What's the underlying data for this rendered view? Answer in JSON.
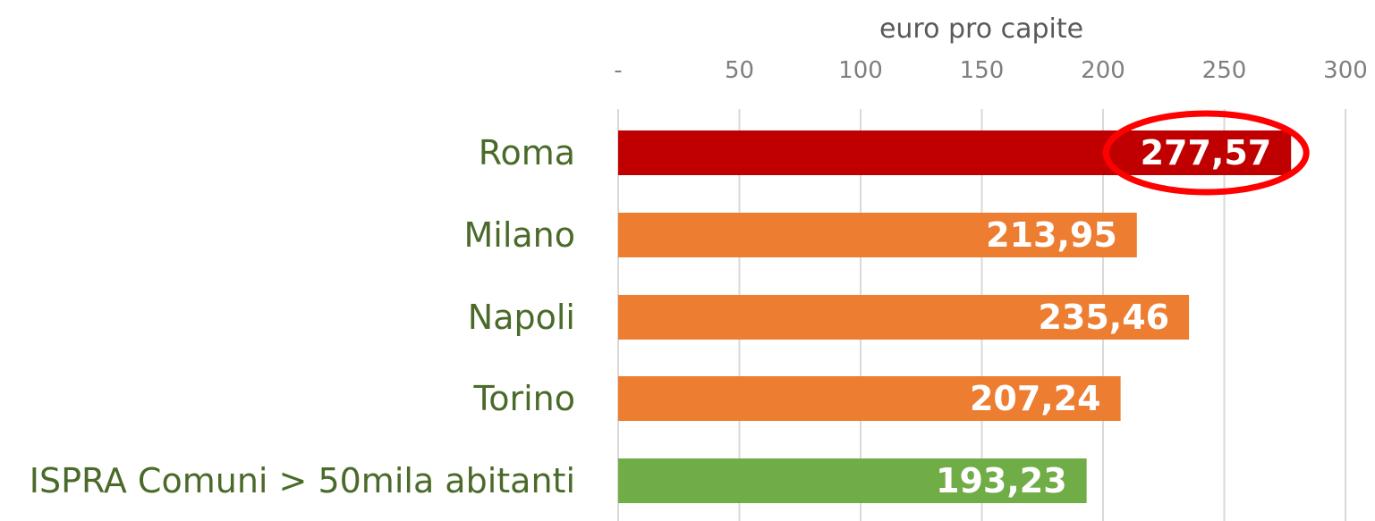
{
  "chart_data": {
    "type": "bar",
    "orientation": "horizontal",
    "xlabel": "euro pro capite",
    "xlim": [
      0,
      300
    ],
    "tick_labels": [
      "-",
      "50",
      "100",
      "150",
      "200",
      "250",
      "300"
    ],
    "grid": true,
    "categories": [
      "Roma",
      "Milano",
      "Napoli",
      "Torino",
      "ISPRA Comuni > 50mila abitanti"
    ],
    "values": [
      277.57,
      213.95,
      235.46,
      207.24,
      193.23
    ],
    "data_labels": [
      "277,57",
      "213,95",
      "235,46",
      "207,24",
      "193,23"
    ],
    "colors": [
      "#c00000",
      "#ed7d31",
      "#ed7d31",
      "#ed7d31",
      "#70ad47"
    ],
    "highlight": {
      "category": "Roma",
      "shape": "ellipse",
      "color": "#ff0000"
    }
  }
}
